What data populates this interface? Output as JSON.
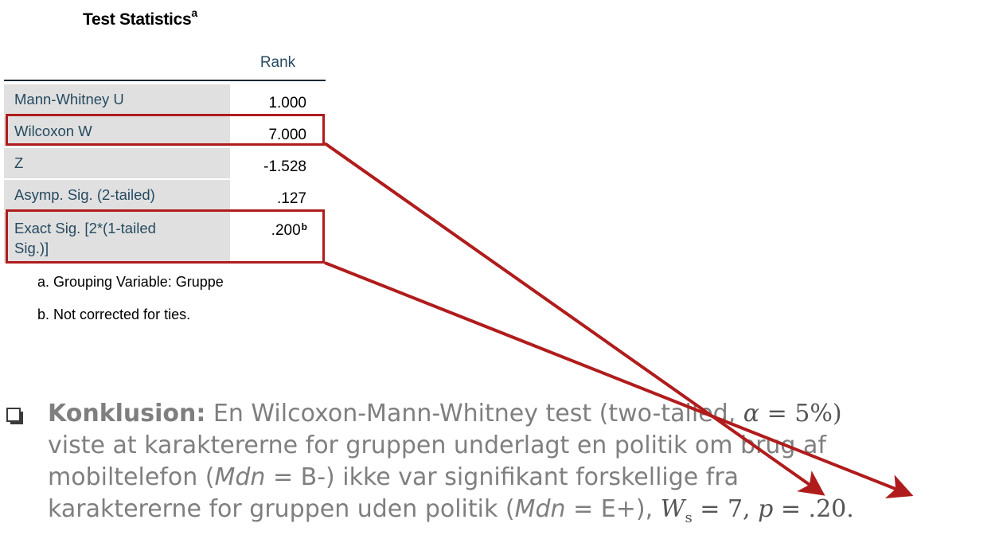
{
  "table": {
    "title": "Test Statistics",
    "title_sup": "a",
    "column_header": "Rank",
    "rows": [
      {
        "label": "Mann-Whitney U",
        "value": "1.000",
        "sup": ""
      },
      {
        "label": "Wilcoxon W",
        "value": "7.000",
        "sup": ""
      },
      {
        "label": "Z",
        "value": "-1.528",
        "sup": ""
      },
      {
        "label": "Asymp. Sig. (2-tailed)",
        "value": ".127",
        "sup": ""
      },
      {
        "label": "Exact Sig. [2*(1-tailed Sig.)]",
        "value": ".200",
        "sup": "b"
      }
    ],
    "footnotes": [
      "a. Grouping Variable: Gruppe",
      "b. Not corrected for ties."
    ]
  },
  "conclusion": {
    "heading": "Konklusion:",
    "line1_a": " En Wilcoxon-Mann-Whitney test (two-tailed, ",
    "alpha": "α",
    "alpha_eq": " = 5%)",
    "line2": "viste at karaktererne for gruppen underlagt en politik om brug af",
    "line3_a": "mobiltelefon (",
    "mdn": "Mdn",
    "line3_b": " = B-) ikke var signifikant forskellige fra",
    "line4_a": "karaktererne for gruppen uden politik (",
    "line4_b": " = E+), ",
    "w_sym": "W",
    "w_sub": "s",
    "w_val": " = 7, ",
    "p_sym": "p",
    "p_val": " =  .20."
  },
  "colors": {
    "highlight": "#b01c1c",
    "label_bg": "#e0e0e0",
    "label_text": "#264a60"
  }
}
